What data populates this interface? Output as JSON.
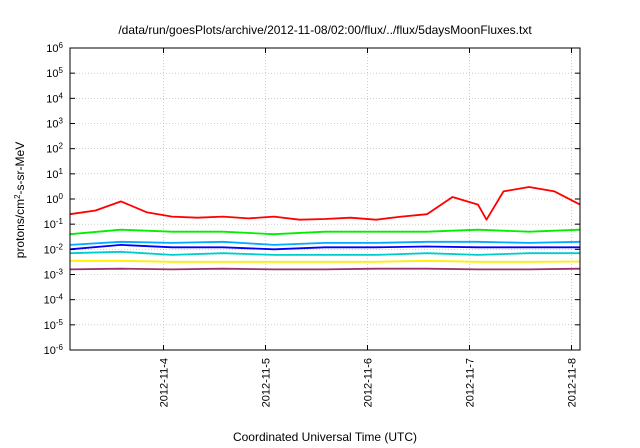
{
  "chart_data": {
    "type": "line",
    "title": "/data/run/goesPlots/archive/2012-11-08/02:00/flux/../flux/5daysMoonFluxes.txt",
    "xlabel": "Coordinated Universal Time (UTC)",
    "ylabel": {
      "pre": "protons/cm",
      "sup": "2",
      "post": "-s-sr-MeV"
    },
    "y_scale": "log",
    "ylim": [
      1e-06,
      1000000.0
    ],
    "y_ticks": [
      {
        "value": 1e-06,
        "base": "10",
        "exp": "-6"
      },
      {
        "value": 1e-05,
        "base": "10",
        "exp": "-5"
      },
      {
        "value": 0.0001,
        "base": "10",
        "exp": "-4"
      },
      {
        "value": 0.001,
        "base": "10",
        "exp": "-3"
      },
      {
        "value": 0.01,
        "base": "10",
        "exp": "-2"
      },
      {
        "value": 0.1,
        "base": "10",
        "exp": "-1"
      },
      {
        "value": 1,
        "base": "10",
        "exp": "0"
      },
      {
        "value": 10.0,
        "base": "10",
        "exp": "1"
      },
      {
        "value": 100.0,
        "base": "10",
        "exp": "2"
      },
      {
        "value": 1000.0,
        "base": "10",
        "exp": "3"
      },
      {
        "value": 10000.0,
        "base": "10",
        "exp": "4"
      },
      {
        "value": 100000.0,
        "base": "10",
        "exp": "5"
      },
      {
        "value": 1000000.0,
        "base": "10",
        "exp": "6"
      }
    ],
    "xlim": [
      "2012-11-03T02:00",
      "2012-11-08T02:00"
    ],
    "x_ticks": [
      "2012-11-4",
      "2012-11-5",
      "2012-11-6",
      "2012-11-7",
      "2012-11-8"
    ],
    "x_tick_values": [
      "2012-11-04T00:00",
      "2012-11-05T00:00",
      "2012-11-06T00:00",
      "2012-11-07T00:00",
      "2012-11-08T00:00"
    ],
    "grid": true,
    "series": [
      {
        "color": "#ff0000",
        "x": [
          "2012-11-03T02:00",
          "2012-11-03T08:00",
          "2012-11-03T14:00",
          "2012-11-03T20:00",
          "2012-11-04T02:00",
          "2012-11-04T08:00",
          "2012-11-04T14:00",
          "2012-11-04T20:00",
          "2012-11-05T02:00",
          "2012-11-05T08:00",
          "2012-11-05T14:00",
          "2012-11-05T20:00",
          "2012-11-06T02:00",
          "2012-11-06T08:00",
          "2012-11-06T14:00",
          "2012-11-06T20:00",
          "2012-11-07T02:00",
          "2012-11-07T04:00",
          "2012-11-07T08:00",
          "2012-11-07T14:00",
          "2012-11-07T20:00",
          "2012-11-08T02:00"
        ],
        "y": [
          0.25,
          0.35,
          0.8,
          0.3,
          0.2,
          0.18,
          0.2,
          0.17,
          0.2,
          0.15,
          0.16,
          0.18,
          0.15,
          0.2,
          0.25,
          1.2,
          0.6,
          0.15,
          2.0,
          3.0,
          2.0,
          0.6
        ]
      },
      {
        "color": "#00ee00",
        "x": [
          "2012-11-03T02:00",
          "2012-11-03T14:00",
          "2012-11-04T02:00",
          "2012-11-04T14:00",
          "2012-11-05T02:00",
          "2012-11-05T14:00",
          "2012-11-06T02:00",
          "2012-11-06T14:00",
          "2012-11-07T02:00",
          "2012-11-07T14:00",
          "2012-11-08T02:00"
        ],
        "y": [
          0.04,
          0.06,
          0.05,
          0.05,
          0.04,
          0.05,
          0.05,
          0.05,
          0.06,
          0.05,
          0.06
        ]
      },
      {
        "color": "#00aaff",
        "x": [
          "2012-11-03T02:00",
          "2012-11-03T14:00",
          "2012-11-04T02:00",
          "2012-11-04T14:00",
          "2012-11-05T02:00",
          "2012-11-05T14:00",
          "2012-11-06T02:00",
          "2012-11-06T14:00",
          "2012-11-07T02:00",
          "2012-11-07T14:00",
          "2012-11-08T02:00"
        ],
        "y": [
          0.015,
          0.02,
          0.018,
          0.02,
          0.015,
          0.018,
          0.018,
          0.02,
          0.02,
          0.018,
          0.02
        ]
      },
      {
        "color": "#0000ff",
        "x": [
          "2012-11-03T02:00",
          "2012-11-03T14:00",
          "2012-11-04T02:00",
          "2012-11-04T14:00",
          "2012-11-05T02:00",
          "2012-11-05T14:00",
          "2012-11-06T02:00",
          "2012-11-06T14:00",
          "2012-11-07T02:00",
          "2012-11-07T14:00",
          "2012-11-08T02:00"
        ],
        "y": [
          0.01,
          0.015,
          0.012,
          0.012,
          0.01,
          0.012,
          0.012,
          0.013,
          0.012,
          0.012,
          0.012
        ]
      },
      {
        "color": "#00cccc",
        "x": [
          "2012-11-03T02:00",
          "2012-11-03T14:00",
          "2012-11-04T02:00",
          "2012-11-04T14:00",
          "2012-11-05T02:00",
          "2012-11-05T14:00",
          "2012-11-06T02:00",
          "2012-11-06T14:00",
          "2012-11-07T02:00",
          "2012-11-07T14:00",
          "2012-11-08T02:00"
        ],
        "y": [
          0.007,
          0.008,
          0.006,
          0.007,
          0.006,
          0.006,
          0.006,
          0.007,
          0.006,
          0.007,
          0.007
        ]
      },
      {
        "color": "#ffee00",
        "x": [
          "2012-11-03T02:00",
          "2012-11-03T14:00",
          "2012-11-04T02:00",
          "2012-11-04T14:00",
          "2012-11-05T02:00",
          "2012-11-05T14:00",
          "2012-11-06T02:00",
          "2012-11-06T14:00",
          "2012-11-07T02:00",
          "2012-11-07T14:00",
          "2012-11-08T02:00"
        ],
        "y": [
          0.0035,
          0.0035,
          0.0032,
          0.0032,
          0.0032,
          0.0032,
          0.0032,
          0.0035,
          0.0032,
          0.0032,
          0.0033
        ]
      },
      {
        "color": "#993366",
        "x": [
          "2012-11-03T02:00",
          "2012-11-03T14:00",
          "2012-11-04T02:00",
          "2012-11-04T14:00",
          "2012-11-05T02:00",
          "2012-11-05T14:00",
          "2012-11-06T02:00",
          "2012-11-06T14:00",
          "2012-11-07T02:00",
          "2012-11-07T14:00",
          "2012-11-08T02:00"
        ],
        "y": [
          0.0016,
          0.0017,
          0.0016,
          0.0017,
          0.0016,
          0.0016,
          0.0017,
          0.0017,
          0.0016,
          0.0016,
          0.0017
        ]
      }
    ]
  }
}
